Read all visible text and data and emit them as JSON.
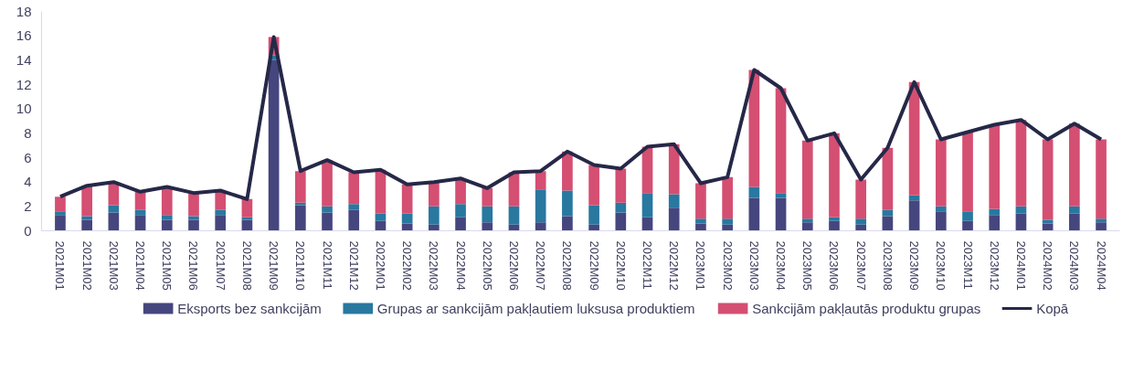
{
  "chart_data": {
    "type": "bar",
    "stacked": true,
    "categories": [
      "2021M01",
      "2021M02",
      "2021M03",
      "2021M04",
      "2021M05",
      "2021M06",
      "2021M07",
      "2021M08",
      "2021M09",
      "2021M10",
      "2021M11",
      "2021M12",
      "2022M01",
      "2022M02",
      "2022M03",
      "2022M04",
      "2022M05",
      "2022M06",
      "2022M07",
      "2022M08",
      "2022M09",
      "2022M10",
      "2022M11",
      "2022M12",
      "2023M01",
      "2023M02",
      "2023M03",
      "2023M04",
      "2023M05",
      "2023M06",
      "2023M07",
      "2023M08",
      "2023M09",
      "2023M10",
      "2023M11",
      "2023M12",
      "2024M01",
      "2024M02",
      "2024M03",
      "2024M04"
    ],
    "series": [
      {
        "name": "Eksports bez sankcijām",
        "color": "#46467e",
        "values": [
          1.3,
          0.9,
          1.5,
          1.3,
          0.9,
          0.9,
          1.3,
          0.9,
          14.0,
          2.1,
          1.5,
          1.7,
          0.8,
          0.6,
          0.5,
          1.1,
          0.7,
          0.5,
          0.7,
          1.2,
          0.5,
          1.5,
          1.1,
          1.9,
          0.6,
          0.5,
          2.7,
          2.7,
          0.7,
          0.8,
          0.5,
          1.2,
          2.5,
          1.6,
          0.8,
          1.3,
          1.4,
          0.6,
          1.4,
          0.7
        ]
      },
      {
        "name": "Grupas ar sankcijām pakļautiem luksusa produktiem",
        "color": "#2878a0",
        "values": [
          0.3,
          0.3,
          0.6,
          0.4,
          0.4,
          0.3,
          0.4,
          0.2,
          0.4,
          0.2,
          0.5,
          0.5,
          0.6,
          0.8,
          1.5,
          1.1,
          1.3,
          1.5,
          2.7,
          2.1,
          1.6,
          0.8,
          2.0,
          1.1,
          0.4,
          0.5,
          0.9,
          0.4,
          0.3,
          0.3,
          0.5,
          0.5,
          0.4,
          0.4,
          0.8,
          0.5,
          0.6,
          0.3,
          0.6,
          0.3
        ]
      },
      {
        "name": "Sankcijām pakļautās produktu grupas",
        "color": "#d44f72",
        "values": [
          1.2,
          2.5,
          1.9,
          1.5,
          2.3,
          1.9,
          1.6,
          1.5,
          1.5,
          2.6,
          3.8,
          2.6,
          3.6,
          2.4,
          2.0,
          2.1,
          1.5,
          2.8,
          1.5,
          3.2,
          3.3,
          2.8,
          3.8,
          4.1,
          2.9,
          3.4,
          9.6,
          8.6,
          6.4,
          6.9,
          3.2,
          5.1,
          9.3,
          5.5,
          6.5,
          6.9,
          7.1,
          6.6,
          6.8,
          6.5
        ]
      },
      {
        "name": "Kopā",
        "type": "line",
        "color": "#262848",
        "values": [
          2.8,
          3.7,
          4.0,
          3.2,
          3.6,
          3.1,
          3.3,
          2.6,
          15.9,
          4.9,
          5.8,
          4.8,
          5.0,
          3.8,
          4.0,
          4.3,
          3.5,
          4.8,
          4.9,
          6.5,
          5.4,
          5.1,
          6.9,
          7.1,
          3.9,
          4.4,
          13.2,
          11.7,
          7.4,
          8.0,
          4.2,
          6.8,
          12.2,
          7.5,
          8.1,
          8.7,
          9.1,
          7.5,
          8.8,
          7.5
        ]
      }
    ],
    "ylim": [
      0,
      18
    ],
    "yticks": [
      0,
      2,
      4,
      6,
      8,
      10,
      12,
      14,
      16,
      18
    ],
    "grid": false,
    "legend": "bottom"
  }
}
